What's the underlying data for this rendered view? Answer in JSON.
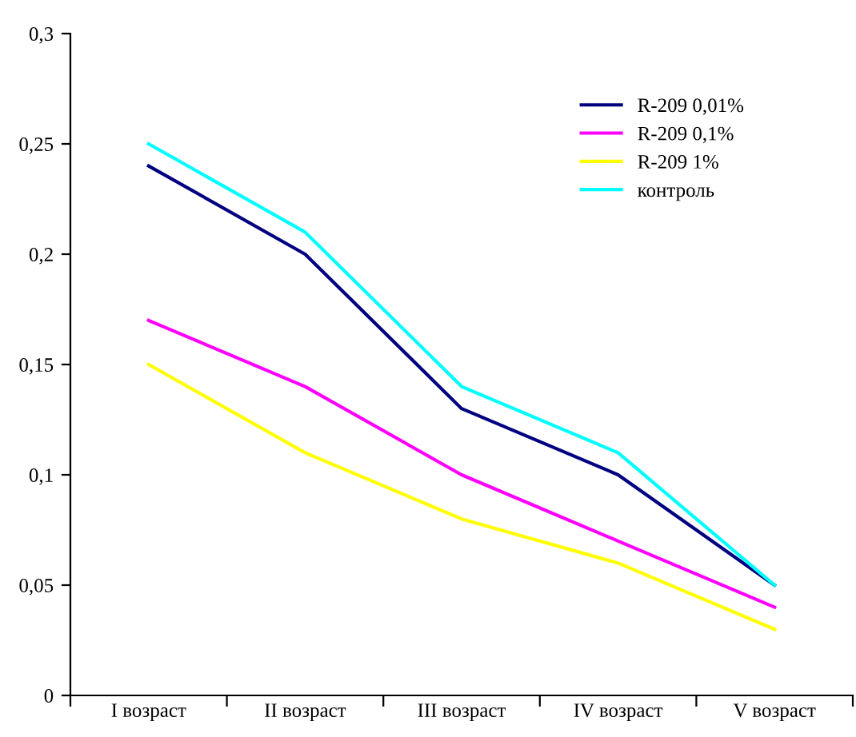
{
  "chart_data": {
    "type": "line",
    "categories": [
      "I возраст",
      "II возраст",
      "III возраст",
      "IV возраст",
      "V возраст"
    ],
    "series": [
      {
        "name": "R-209 0,01%",
        "color": "#000080",
        "values": [
          0.24,
          0.2,
          0.13,
          0.1,
          0.05
        ]
      },
      {
        "name": "R-209 0,1%",
        "color": "#ff00ff",
        "values": [
          0.17,
          0.14,
          0.1,
          0.07,
          0.04
        ]
      },
      {
        "name": "R-209 1%",
        "color": "#ffff00",
        "values": [
          0.15,
          0.11,
          0.08,
          0.06,
          0.03
        ]
      },
      {
        "name": "контроль",
        "color": "#00ffff",
        "values": [
          0.25,
          0.21,
          0.14,
          0.11,
          0.05
        ]
      }
    ],
    "ylim": [
      0,
      0.3
    ],
    "yticks": [
      0,
      {
        "value": 0.05,
        "label": "0,05"
      },
      {
        "value": 0.1,
        "label": "0,1"
      },
      {
        "value": 0.15,
        "label": "0,15"
      },
      {
        "value": 0.2,
        "label": "0,2"
      },
      {
        "value": 0.25,
        "label": "0,25"
      },
      {
        "value": 0.3,
        "label": "0,3"
      }
    ],
    "grid": false,
    "legend": "top right",
    "marker": "none",
    "line_style": "solid"
  }
}
